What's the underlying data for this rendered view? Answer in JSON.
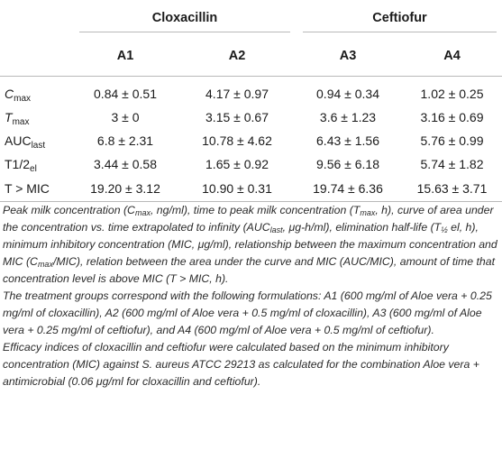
{
  "table": {
    "group_headers": [
      "Cloxacillin",
      "Ceftiofur"
    ],
    "sub_headers": [
      "A1",
      "A2",
      "A3",
      "A4"
    ],
    "rows": [
      {
        "label_main": "C",
        "label_sub": "max",
        "label_italic": true,
        "values": [
          "0.84 ± 0.51",
          "4.17 ± 0.97",
          "0.94 ± 0.34",
          "1.02 ± 0.25"
        ]
      },
      {
        "label_main": "T",
        "label_sub": "max",
        "label_italic": true,
        "values": [
          "3 ± 0",
          "3.15 ± 0.67",
          "3.6 ± 1.23",
          "3.16 ± 0.69"
        ]
      },
      {
        "label_main": "AUC",
        "label_sub": "last",
        "label_italic": false,
        "values": [
          "6.8 ± 2.31",
          "10.78 ± 4.62",
          "6.43 ± 1.56",
          "5.76 ± 0.99"
        ]
      },
      {
        "label_main": "T1/2",
        "label_sub": "el",
        "label_italic": false,
        "values": [
          "3.44 ± 0.58",
          "1.65 ± 0.92",
          "9.56 ± 6.18",
          "5.74 ± 1.82"
        ]
      },
      {
        "label_main": "T > MIC",
        "label_sub": "",
        "label_italic": false,
        "values": [
          "19.20 ± 3.12",
          "10.90 ± 0.31",
          "19.74 ± 6.36",
          "15.63 ± 3.71"
        ]
      }
    ]
  },
  "notes": {
    "p1_segments": [
      {
        "t": "Peak milk concentration (C"
      },
      {
        "t": "max",
        "sub": true
      },
      {
        "t": ", ng/ml), time to peak milk concentration (T"
      },
      {
        "t": "max",
        "sub": true
      },
      {
        "t": ", h), curve of area under the concentration vs. time extrapolated to infinity (AUC"
      },
      {
        "t": "last",
        "sub": true
      },
      {
        "t": ", μg-h/ml), elimination half-life (T"
      },
      {
        "t": "½",
        "sub": true
      },
      {
        "t": " el, h), minimum inhibitory concentration (MIC, μg/ml), relationship between the maximum concentration and MIC (C"
      },
      {
        "t": "max",
        "sub": true
      },
      {
        "t": "/MIC), relation between the area under the curve and MIC (AUC/MIC), amount of time that concentration level is above MIC (T > MIC, h)."
      }
    ],
    "p2": "The treatment groups correspond with the following formulations: A1 (600 mg/ml of Aloe vera + 0.25 mg/ml of cloxacillin), A2 (600 mg/ml of Aloe vera + 0.5 mg/ml of cloxacillin), A3 (600 mg/ml of Aloe vera + 0.25 mg/ml of ceftiofur), and A4 (600 mg/ml of Aloe vera + 0.5 mg/ml of ceftiofur).",
    "p3": "Efficacy indices of cloxacillin and ceftiofur were calculated based on the minimum inhibitory concentration (MIC) against S. aureus ATCC 29213 as calculated for the combination Aloe vera + antimicrobial (0.06 μg/ml for cloxacillin and ceftiofur)."
  }
}
